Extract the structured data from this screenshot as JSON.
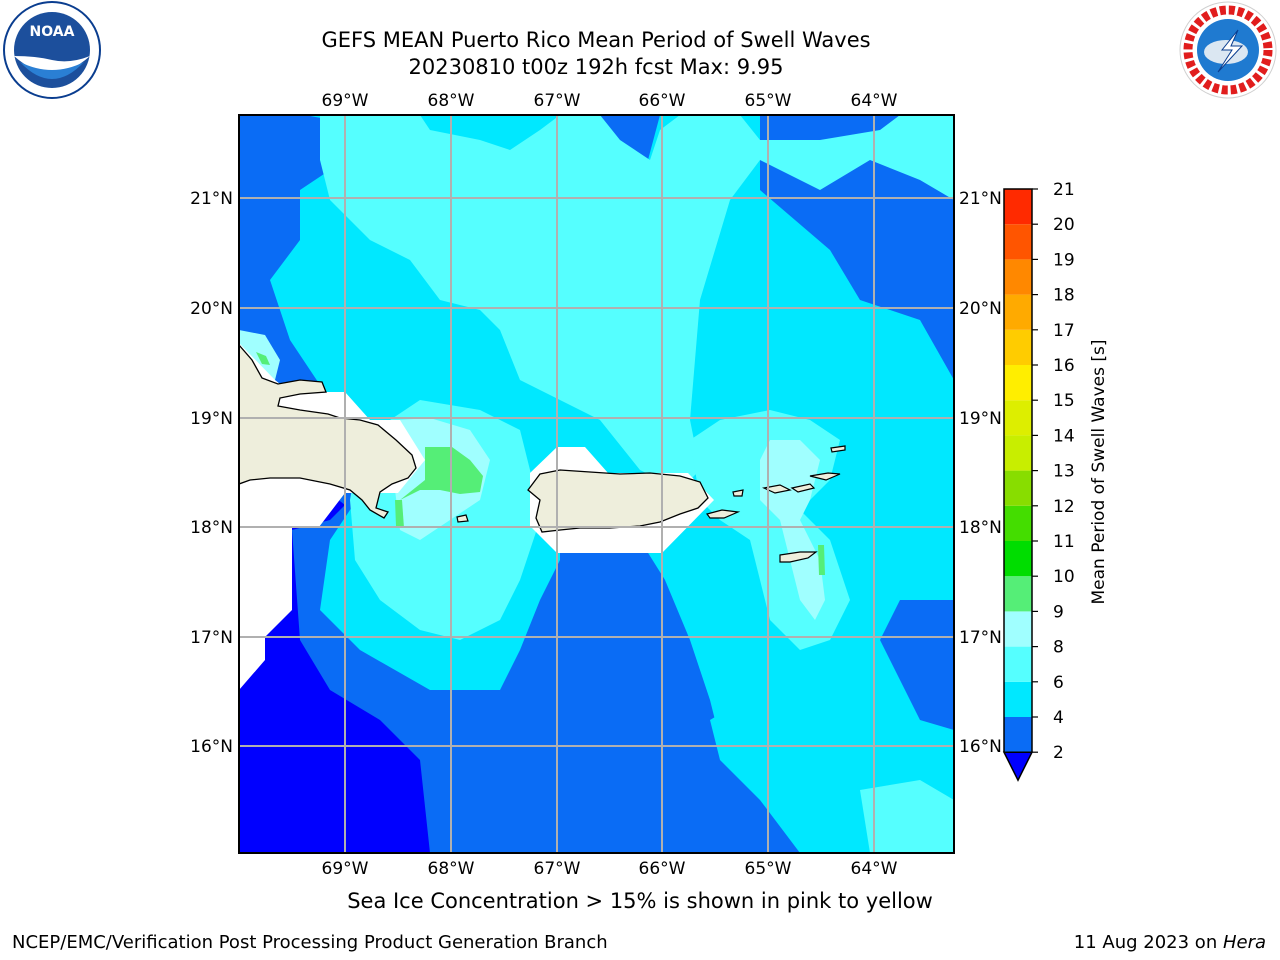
{
  "title_line1": "GEFS MEAN Puerto Rico Mean Period of Swell Waves",
  "title_line2": "20230810 t00z 192h fcst   Max: 9.95",
  "note": "Sea Ice Concentration > 15% is shown in pink to yellow",
  "credit_left": "NCEP/EMC/Verification Post Processing Product Generation Branch",
  "credit_date": "11 Aug 2023 on ",
  "credit_host": "Hera",
  "logos": {
    "left": "NOAA",
    "right": "NATIONAL WEATHER SERVICE"
  },
  "map": {
    "lon_labels": [
      "69°W",
      "68°W",
      "67°W",
      "66°W",
      "65°W",
      "64°W"
    ],
    "lat_labels": [
      "21°N",
      "20°N",
      "19°N",
      "18°N",
      "17°N",
      "16°N"
    ]
  },
  "colorbar": {
    "label": "Mean Period of Swell Waves [s]",
    "ticks": [
      "2",
      "4",
      "6",
      "8",
      "9",
      "10",
      "11",
      "12",
      "13",
      "14",
      "15",
      "16",
      "17",
      "18",
      "19",
      "20",
      "21"
    ],
    "colors": [
      "#0000ff",
      "#0a6cf5",
      "#00e8ff",
      "#55ffff",
      "#a0ffff",
      "#55ee77",
      "#00dd00",
      "#44dd00",
      "#88dd00",
      "#c8ee00",
      "#ddee00",
      "#ffee00",
      "#ffcc00",
      "#ffaa00",
      "#ff8800",
      "#ff5500",
      "#ff2a00",
      "#ff0000"
    ]
  },
  "colors": {
    "deep_blue": "#0000ff",
    "blue": "#0a6cf5",
    "cyan": "#00e8ff",
    "light_cyan": "#55ffff",
    "pale_cyan": "#a0ffff",
    "green": "#55ee77",
    "land": "#eeeedc",
    "grid": "#b0b0b0"
  }
}
